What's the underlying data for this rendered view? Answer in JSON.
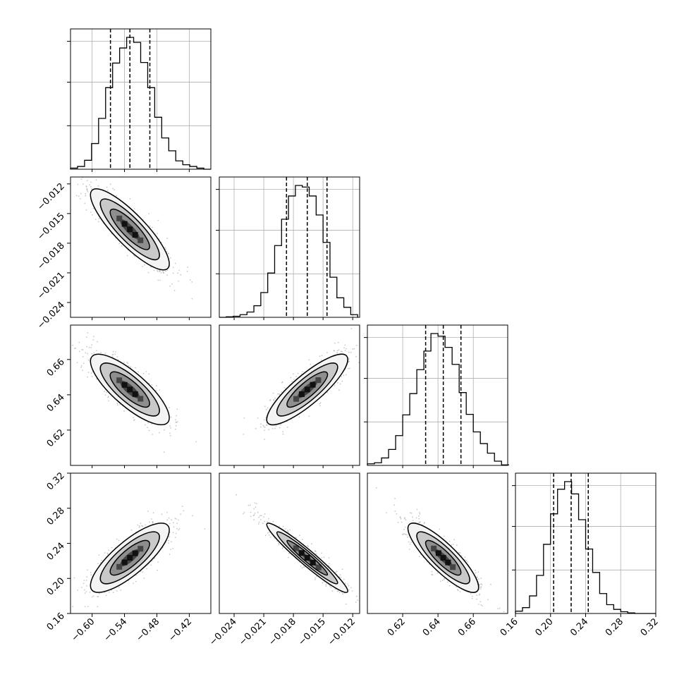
{
  "chart_data": {
    "type": "corner",
    "parameters": [
      {
        "range": [
          -0.64,
          -0.38
        ],
        "ticks": [
          -0.6,
          -0.54,
          -0.48,
          -0.42
        ],
        "tick_labels": [
          "−0.60",
          "−0.54",
          "−0.48",
          "−0.42"
        ]
      },
      {
        "range": [
          -0.0255,
          -0.0113
        ],
        "ticks": [
          -0.024,
          -0.021,
          -0.018,
          -0.015,
          -0.012
        ],
        "tick_labels": [
          "−0.024",
          "−0.021",
          "−0.018",
          "−0.015",
          "−0.012"
        ]
      },
      {
        "range": [
          0.6,
          0.6795
        ],
        "ticks": [
          0.62,
          0.64,
          0.66
        ],
        "tick_labels": [
          "0.62",
          "0.64",
          "0.66"
        ]
      },
      {
        "range": [
          0.16,
          0.32
        ],
        "ticks": [
          0.16,
          0.2,
          0.24,
          0.28,
          0.32
        ],
        "tick_labels": [
          "0.16",
          "0.20",
          "0.24",
          "0.28",
          "0.32"
        ]
      }
    ],
    "quantiles": [
      [
        -0.566,
        -0.53,
        -0.493
      ],
      [
        -0.0187,
        -0.0166,
        -0.0146
      ],
      [
        0.633,
        0.643,
        0.653
      ],
      [
        0.2035,
        0.2235,
        0.243
      ]
    ],
    "histograms": [
      {
        "edges": [
          -0.64,
          -0.627,
          -0.614,
          -0.601,
          -0.588,
          -0.575,
          -0.562,
          -0.549,
          -0.536,
          -0.523,
          -0.51,
          -0.497,
          -0.484,
          -0.471,
          -0.458,
          -0.445,
          -0.432,
          -0.419,
          -0.406,
          -0.393,
          -0.38
        ],
        "counts": [
          2,
          5,
          16,
          46,
          91,
          146,
          190,
          217,
          236,
          227,
          191,
          146,
          93,
          56,
          33,
          15,
          8,
          5,
          2,
          0
        ]
      },
      {
        "edges": [
          -0.0255,
          -0.0248,
          -0.0241,
          -0.0234,
          -0.0227,
          -0.022,
          -0.0213,
          -0.0206,
          -0.0199,
          -0.0192,
          -0.0185,
          -0.0178,
          -0.0171,
          -0.0164,
          -0.0157,
          -0.015,
          -0.0143,
          -0.0136,
          -0.0129,
          -0.0122,
          -0.0115
        ],
        "counts": [
          0,
          1,
          2,
          5,
          10,
          22,
          47,
          84,
          136,
          186,
          230,
          250,
          247,
          230,
          194,
          142,
          76,
          37,
          19,
          5
        ]
      },
      {
        "edges": [
          0.6,
          0.604,
          0.608,
          0.612,
          0.616,
          0.62,
          0.624,
          0.628,
          0.632,
          0.636,
          0.64,
          0.644,
          0.648,
          0.652,
          0.656,
          0.66,
          0.664,
          0.668,
          0.672,
          0.676,
          0.68
        ],
        "counts": [
          3,
          5,
          14,
          30,
          56,
          95,
          135,
          180,
          215,
          248,
          243,
          222,
          190,
          137,
          96,
          63,
          41,
          23,
          8,
          1
        ]
      },
      {
        "edges": [
          0.16,
          0.168,
          0.176,
          0.184,
          0.192,
          0.2,
          0.208,
          0.216,
          0.224,
          0.232,
          0.24,
          0.248,
          0.256,
          0.264,
          0.272,
          0.28,
          0.288,
          0.296,
          0.304,
          0.312,
          0.32
        ],
        "counts": [
          4,
          10,
          30,
          65,
          118,
          170,
          212,
          225,
          204,
          160,
          110,
          70,
          34,
          15,
          7,
          3,
          1,
          0,
          0,
          0
        ]
      }
    ],
    "correlations": [
      [
        1,
        -0.85,
        -0.8,
        0.8
      ],
      [
        -0.85,
        1,
        0.85,
        -0.96
      ],
      [
        -0.8,
        0.85,
        1,
        -0.85
      ],
      [
        0.8,
        -0.96,
        -0.85,
        1
      ]
    ],
    "contour_levels_sigma": [
      0.5,
      1.0,
      1.5,
      2.0
    ],
    "colors": {
      "line": "#000000",
      "points": "#9a9a9a",
      "grid": "#b0b0b0"
    }
  }
}
